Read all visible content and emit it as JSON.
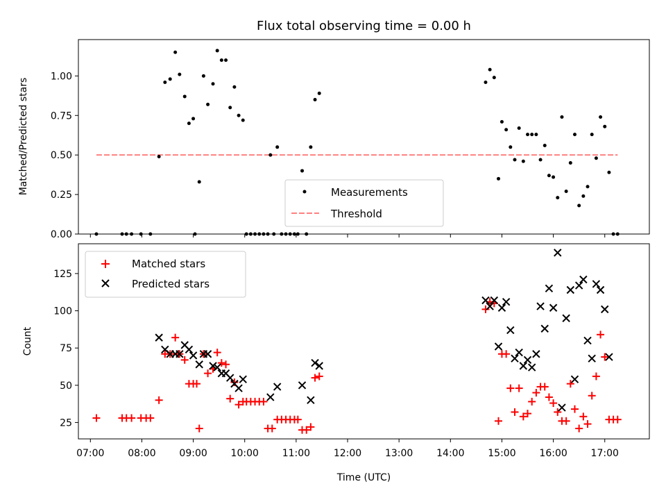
{
  "chart_data": [
    {
      "type": "scatter",
      "title": "Flux total observing time = 0.00 h",
      "xlabel": "",
      "ylabel": "Matched/Predicted stars",
      "xlim": [
        "06:46",
        "17:52"
      ],
      "ylim": [
        0,
        1.23
      ],
      "yticks": [
        "0.00",
        "0.25",
        "0.50",
        "0.75",
        "1.00"
      ],
      "legend_position": "lower-center",
      "series": [
        {
          "name": "Measurements",
          "marker": "dot",
          "color": "#000000",
          "points": [
            [
              "07:07",
              0
            ],
            [
              "07:37",
              0
            ],
            [
              "07:42",
              0
            ],
            [
              "07:48",
              0
            ],
            [
              "07:59",
              0
            ],
            [
              "08:10",
              0
            ],
            [
              "08:20",
              0.49
            ],
            [
              "08:27",
              0.96
            ],
            [
              "08:33",
              0.98
            ],
            [
              "08:39",
              1.15
            ],
            [
              "08:44",
              1.01
            ],
            [
              "08:50",
              0.87
            ],
            [
              "08:55",
              0.7
            ],
            [
              "09:00",
              0.73
            ],
            [
              "09:02",
              0
            ],
            [
              "09:07",
              0.33
            ],
            [
              "09:12",
              1.0
            ],
            [
              "09:17",
              0.82
            ],
            [
              "09:23",
              0.95
            ],
            [
              "09:28",
              1.16
            ],
            [
              "09:33",
              1.1
            ],
            [
              "09:38",
              1.1
            ],
            [
              "09:43",
              0.8
            ],
            [
              "09:48",
              0.93
            ],
            [
              "09:53",
              0.75
            ],
            [
              "09:58",
              0.72
            ],
            [
              "10:02",
              0
            ],
            [
              "10:07",
              0
            ],
            [
              "10:12",
              0
            ],
            [
              "10:17",
              0
            ],
            [
              "10:22",
              0
            ],
            [
              "10:27",
              0
            ],
            [
              "10:30",
              0.5
            ],
            [
              "10:34",
              0
            ],
            [
              "10:38",
              0.55
            ],
            [
              "10:43",
              0
            ],
            [
              "10:48",
              0
            ],
            [
              "10:53",
              0
            ],
            [
              "10:58",
              0
            ],
            [
              "11:02",
              0
            ],
            [
              "11:07",
              0.4
            ],
            [
              "11:12",
              0
            ],
            [
              "11:17",
              0.55
            ],
            [
              "11:22",
              0.85
            ],
            [
              "11:27",
              0.89
            ],
            [
              "14:41",
              0.96
            ],
            [
              "14:46",
              1.04
            ],
            [
              "14:51",
              0.99
            ],
            [
              "14:56",
              0.35
            ],
            [
              "15:00",
              0.71
            ],
            [
              "15:05",
              0.66
            ],
            [
              "15:10",
              0.55
            ],
            [
              "15:15",
              0.47
            ],
            [
              "15:20",
              0.67
            ],
            [
              "15:25",
              0.46
            ],
            [
              "15:30",
              0.63
            ],
            [
              "15:35",
              0.63
            ],
            [
              "15:40",
              0.63
            ],
            [
              "15:45",
              0.47
            ],
            [
              "15:50",
              0.56
            ],
            [
              "15:55",
              0.37
            ],
            [
              "16:00",
              0.36
            ],
            [
              "16:05",
              0.23
            ],
            [
              "16:10",
              0.74
            ],
            [
              "16:15",
              0.27
            ],
            [
              "16:20",
              0.45
            ],
            [
              "16:25",
              0.63
            ],
            [
              "16:30",
              0.18
            ],
            [
              "16:35",
              0.24
            ],
            [
              "16:40",
              0.3
            ],
            [
              "16:45",
              0.63
            ],
            [
              "16:50",
              0.48
            ],
            [
              "16:55",
              0.74
            ],
            [
              "17:00",
              0.68
            ],
            [
              "17:05",
              0.39
            ],
            [
              "17:10",
              0
            ],
            [
              "17:15",
              0
            ]
          ]
        },
        {
          "name": "Threshold",
          "marker": "dashed-line",
          "color": "#ff8080",
          "points": [
            [
              "07:07",
              0.5
            ],
            [
              "17:15",
              0.5
            ]
          ]
        }
      ]
    },
    {
      "type": "scatter",
      "title": "",
      "xlabel": "Time (UTC)",
      "ylabel": "Count",
      "xlim": [
        "06:46",
        "17:52"
      ],
      "ylim": [
        14,
        145
      ],
      "yticks": [
        "25",
        "50",
        "75",
        "100",
        "125"
      ],
      "xticks": [
        "07:00",
        "08:00",
        "09:00",
        "10:00",
        "11:00",
        "12:00",
        "13:00",
        "14:00",
        "15:00",
        "16:00",
        "17:00"
      ],
      "legend_position": "upper-left",
      "series": [
        {
          "name": "Matched stars",
          "marker": "plus",
          "color": "#ff0000",
          "points": [
            [
              "07:07",
              28
            ],
            [
              "07:37",
              28
            ],
            [
              "07:42",
              28
            ],
            [
              "07:48",
              28
            ],
            [
              "07:59",
              28
            ],
            [
              "08:05",
              28
            ],
            [
              "08:10",
              28
            ],
            [
              "08:20",
              40
            ],
            [
              "08:27",
              71
            ],
            [
              "08:33",
              71
            ],
            [
              "08:39",
              82
            ],
            [
              "08:44",
              71
            ],
            [
              "08:50",
              67
            ],
            [
              "08:55",
              51
            ],
            [
              "09:00",
              51
            ],
            [
              "09:04",
              51
            ],
            [
              "09:07",
              21
            ],
            [
              "09:12",
              71
            ],
            [
              "09:17",
              58
            ],
            [
              "09:23",
              61
            ],
            [
              "09:28",
              72
            ],
            [
              "09:33",
              65
            ],
            [
              "09:38",
              64
            ],
            [
              "09:43",
              41
            ],
            [
              "09:48",
              52
            ],
            [
              "09:53",
              37
            ],
            [
              "09:58",
              39
            ],
            [
              "10:02",
              39
            ],
            [
              "10:07",
              39
            ],
            [
              "10:12",
              39
            ],
            [
              "10:17",
              39
            ],
            [
              "10:22",
              39
            ],
            [
              "10:27",
              21
            ],
            [
              "10:32",
              21
            ],
            [
              "10:38",
              27
            ],
            [
              "10:43",
              27
            ],
            [
              "10:48",
              27
            ],
            [
              "10:53",
              27
            ],
            [
              "10:58",
              27
            ],
            [
              "11:02",
              27
            ],
            [
              "11:07",
              20
            ],
            [
              "11:12",
              20
            ],
            [
              "11:17",
              22
            ],
            [
              "11:22",
              55
            ],
            [
              "11:27",
              56
            ],
            [
              "14:41",
              101
            ],
            [
              "14:46",
              106
            ],
            [
              "14:51",
              105
            ],
            [
              "14:56",
              26
            ],
            [
              "15:00",
              71
            ],
            [
              "15:05",
              71
            ],
            [
              "15:10",
              48
            ],
            [
              "15:15",
              32
            ],
            [
              "15:20",
              48
            ],
            [
              "15:25",
              29
            ],
            [
              "15:30",
              31
            ],
            [
              "15:35",
              39
            ],
            [
              "15:40",
              45
            ],
            [
              "15:45",
              49
            ],
            [
              "15:50",
              49
            ],
            [
              "15:55",
              42
            ],
            [
              "16:00",
              38
            ],
            [
              "16:05",
              32
            ],
            [
              "16:10",
              26
            ],
            [
              "16:15",
              26
            ],
            [
              "16:20",
              51
            ],
            [
              "16:25",
              34
            ],
            [
              "16:30",
              21
            ],
            [
              "16:35",
              29
            ],
            [
              "16:40",
              24
            ],
            [
              "16:45",
              43
            ],
            [
              "16:50",
              56
            ],
            [
              "16:55",
              84
            ],
            [
              "17:00",
              69
            ],
            [
              "17:05",
              27
            ],
            [
              "17:10",
              27
            ],
            [
              "17:15",
              27
            ]
          ]
        },
        {
          "name": "Predicted stars",
          "marker": "x",
          "color": "#000000",
          "points": [
            [
              "08:20",
              82
            ],
            [
              "08:27",
              74
            ],
            [
              "08:33",
              71
            ],
            [
              "08:39",
              71
            ],
            [
              "08:44",
              71
            ],
            [
              "08:50",
              77
            ],
            [
              "08:55",
              74
            ],
            [
              "09:00",
              70
            ],
            [
              "09:07",
              64
            ],
            [
              "09:12",
              71
            ],
            [
              "09:17",
              71
            ],
            [
              "09:23",
              63
            ],
            [
              "09:28",
              62
            ],
            [
              "09:33",
              58
            ],
            [
              "09:38",
              58
            ],
            [
              "09:43",
              55
            ],
            [
              "09:48",
              51
            ],
            [
              "09:53",
              48
            ],
            [
              "09:58",
              54
            ],
            [
              "10:30",
              42
            ],
            [
              "10:38",
              49
            ],
            [
              "11:07",
              50
            ],
            [
              "11:17",
              40
            ],
            [
              "11:22",
              65
            ],
            [
              "11:27",
              63
            ],
            [
              "14:41",
              107
            ],
            [
              "14:46",
              103
            ],
            [
              "14:51",
              107
            ],
            [
              "14:56",
              76
            ],
            [
              "15:00",
              102
            ],
            [
              "15:05",
              106
            ],
            [
              "15:10",
              87
            ],
            [
              "15:15",
              68
            ],
            [
              "15:20",
              72
            ],
            [
              "15:25",
              63
            ],
            [
              "15:30",
              67
            ],
            [
              "15:35",
              62
            ],
            [
              "15:40",
              71
            ],
            [
              "15:45",
              103
            ],
            [
              "15:50",
              88
            ],
            [
              "15:55",
              115
            ],
            [
              "16:00",
              102
            ],
            [
              "16:05",
              139
            ],
            [
              "16:10",
              35
            ],
            [
              "16:15",
              95
            ],
            [
              "16:20",
              114
            ],
            [
              "16:25",
              54
            ],
            [
              "16:30",
              117
            ],
            [
              "16:35",
              121
            ],
            [
              "16:40",
              80
            ],
            [
              "16:45",
              68
            ],
            [
              "16:50",
              118
            ],
            [
              "16:55",
              114
            ],
            [
              "17:00",
              101
            ],
            [
              "17:05",
              69
            ]
          ]
        }
      ]
    }
  ]
}
